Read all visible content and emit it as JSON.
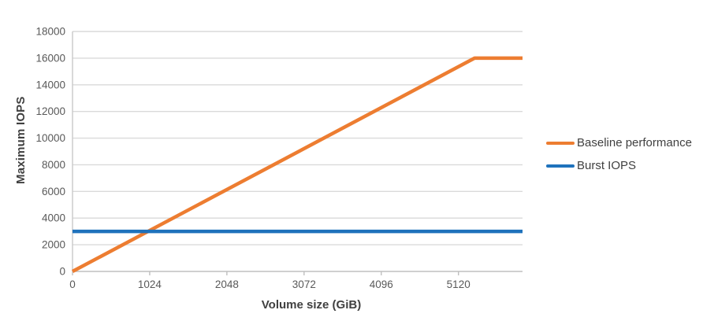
{
  "chart_data": {
    "type": "line",
    "title": "",
    "xlabel": "Volume size (GiB)",
    "ylabel": "Maximum IOPS",
    "xlim": [
      0,
      5970
    ],
    "ylim": [
      0,
      18000
    ],
    "x_ticks": [
      0,
      1024,
      2048,
      3072,
      4096,
      5120
    ],
    "y_ticks": [
      0,
      2000,
      4000,
      6000,
      8000,
      10000,
      12000,
      14000,
      16000,
      18000
    ],
    "grid": "horizontal",
    "legend_position": "right",
    "series": [
      {
        "name": "Baseline performance",
        "color": "#ED7D31",
        "points": [
          [
            0,
            0
          ],
          [
            5334,
            16000
          ],
          [
            5970,
            16000
          ]
        ]
      },
      {
        "name": "Burst IOPS",
        "color": "#1F72BC",
        "points": [
          [
            0,
            3000
          ],
          [
            5970,
            3000
          ]
        ]
      }
    ],
    "style_colors": {
      "gridline": "#DADADA",
      "axis_line": "#BFBFBF",
      "tick_label": "#595959",
      "axis_title": "#404040"
    }
  }
}
